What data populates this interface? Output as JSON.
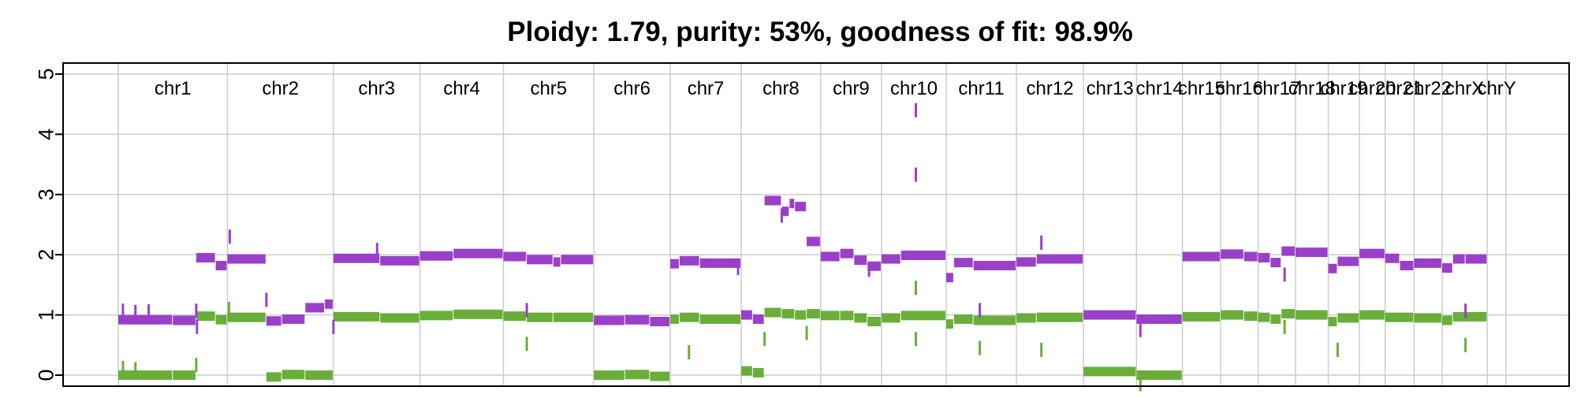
{
  "chart_data": {
    "type": "scatter",
    "title": "Ploidy: 1.79, purity: 53%, goodness of fit: 98.9%",
    "xlabel": "",
    "ylabel": "",
    "ylim": [
      -0.15,
      5.1
    ],
    "yticks": [
      0,
      1,
      2,
      3,
      4,
      5
    ],
    "grid": true,
    "legend": "none",
    "colors": {
      "major": "#9a40c8",
      "minor": "#6aae3a",
      "grid": "#cccccc",
      "axis": "#000000"
    },
    "chromosomes": [
      {
        "name": "chr1",
        "span": [
          0,
          140
        ]
      },
      {
        "name": "chr2",
        "span": [
          140,
          276
        ]
      },
      {
        "name": "chr3",
        "span": [
          276,
          387
        ]
      },
      {
        "name": "chr4",
        "span": [
          387,
          494
        ]
      },
      {
        "name": "chr5",
        "span": [
          494,
          610
        ]
      },
      {
        "name": "chr6",
        "span": [
          610,
          708
        ]
      },
      {
        "name": "chr7",
        "span": [
          708,
          799
        ]
      },
      {
        "name": "chr8",
        "span": [
          799,
          901
        ]
      },
      {
        "name": "chr9",
        "span": [
          901,
          979
        ]
      },
      {
        "name": "chr10",
        "span": [
          979,
          1062
        ]
      },
      {
        "name": "chr11",
        "span": [
          1062,
          1152
        ]
      },
      {
        "name": "chr12",
        "span": [
          1152,
          1238
        ]
      },
      {
        "name": "chr13",
        "span": [
          1238,
          1306
        ]
      },
      {
        "name": "chr14",
        "span": [
          1306,
          1365
        ]
      },
      {
        "name": "chr15",
        "span": [
          1365,
          1414
        ]
      },
      {
        "name": "chr16",
        "span": [
          1414,
          1462
        ]
      },
      {
        "name": "chr17",
        "span": [
          1462,
          1510
        ]
      },
      {
        "name": "chr18",
        "span": [
          1510,
          1552
        ]
      },
      {
        "name": "chr19",
        "span": [
          1552,
          1592
        ]
      },
      {
        "name": "chr20",
        "span": [
          1592,
          1625
        ]
      },
      {
        "name": "chr21",
        "span": [
          1625,
          1662
        ]
      },
      {
        "name": "chr22",
        "span": [
          1662,
          1698
        ]
      },
      {
        "name": "chrX",
        "span": [
          1698,
          1756
        ]
      },
      {
        "name": "chrY",
        "span": [
          1756,
          1780
        ]
      }
    ],
    "series": [
      {
        "name": "major",
        "segments": [
          {
            "x": [
              0,
              70
            ],
            "y": 0.92
          },
          {
            "x": [
              70,
              100
            ],
            "y": 0.91
          },
          {
            "x": [
              100,
              125
            ],
            "y": 1.95
          },
          {
            "x": [
              125,
              140
            ],
            "y": 1.82
          },
          {
            "x": [
              140,
              190
            ],
            "y": 1.93
          },
          {
            "x": [
              190,
              210
            ],
            "y": 0.9
          },
          {
            "x": [
              210,
              240
            ],
            "y": 0.93
          },
          {
            "x": [
              240,
              265
            ],
            "y": 1.12
          },
          {
            "x": [
              265,
              276
            ],
            "y": 1.18
          },
          {
            "x": [
              276,
              336
            ],
            "y": 1.94
          },
          {
            "x": [
              336,
              387
            ],
            "y": 1.9
          },
          {
            "x": [
              387,
              430
            ],
            "y": 1.98
          },
          {
            "x": [
              430,
              494
            ],
            "y": 2.02
          },
          {
            "x": [
              494,
              524
            ],
            "y": 1.97
          },
          {
            "x": [
              524,
              558
            ],
            "y": 1.92
          },
          {
            "x": [
              558,
              568
            ],
            "y": 1.88
          },
          {
            "x": [
              568,
              610
            ],
            "y": 1.92
          },
          {
            "x": [
              610,
              650
            ],
            "y": 0.91
          },
          {
            "x": [
              650,
              682
            ],
            "y": 0.92
          },
          {
            "x": [
              682,
              708
            ],
            "y": 0.89
          },
          {
            "x": [
              708,
              720
            ],
            "y": 1.85
          },
          {
            "x": [
              720,
              746
            ],
            "y": 1.9
          },
          {
            "x": [
              746,
              799
            ],
            "y": 1.86
          },
          {
            "x": [
              799,
              814
            ],
            "y": 1.0
          },
          {
            "x": [
              814,
              829
            ],
            "y": 0.93
          },
          {
            "x": [
              829,
              851
            ],
            "y": 2.9
          },
          {
            "x": [
              851,
              861
            ],
            "y": 2.72
          },
          {
            "x": [
              861,
              868
            ],
            "y": 2.85
          },
          {
            "x": [
              868,
              883
            ],
            "y": 2.8
          },
          {
            "x": [
              883,
              901
            ],
            "y": 2.22
          },
          {
            "x": [
              901,
              926
            ],
            "y": 1.97
          },
          {
            "x": [
              926,
              944
            ],
            "y": 2.02
          },
          {
            "x": [
              944,
              961
            ],
            "y": 1.91
          },
          {
            "x": [
              961,
              979
            ],
            "y": 1.81
          },
          {
            "x": [
              979,
              1004
            ],
            "y": 1.93
          },
          {
            "x": [
              1004,
              1062
            ],
            "y": 1.99
          },
          {
            "x": [
              1062,
              1072
            ],
            "y": 1.62
          },
          {
            "x": [
              1072,
              1097
            ],
            "y": 1.87
          },
          {
            "x": [
              1097,
              1152
            ],
            "y": 1.82
          },
          {
            "x": [
              1152,
              1178
            ],
            "y": 1.88
          },
          {
            "x": [
              1178,
              1238
            ],
            "y": 1.93
          },
          {
            "x": [
              1238,
              1306
            ],
            "y": 1.0
          },
          {
            "x": [
              1306,
              1365
            ],
            "y": 0.93
          },
          {
            "x": [
              1365,
              1414
            ],
            "y": 1.97
          },
          {
            "x": [
              1414,
              1444
            ],
            "y": 2.01
          },
          {
            "x": [
              1444,
              1462
            ],
            "y": 1.97
          },
          {
            "x": [
              1462,
              1478
            ],
            "y": 1.95
          },
          {
            "x": [
              1478,
              1492
            ],
            "y": 1.87
          },
          {
            "x": [
              1492,
              1510
            ],
            "y": 2.06
          },
          {
            "x": [
              1510,
              1552
            ],
            "y": 2.04
          },
          {
            "x": [
              1552,
              1564
            ],
            "y": 1.77
          },
          {
            "x": [
              1564,
              1592
            ],
            "y": 1.89
          },
          {
            "x": [
              1592,
              1625
            ],
            "y": 2.02
          },
          {
            "x": [
              1625,
              1644
            ],
            "y": 1.94
          },
          {
            "x": [
              1644,
              1662
            ],
            "y": 1.82
          },
          {
            "x": [
              1662,
              1698
            ],
            "y": 1.86
          },
          {
            "x": [
              1698,
              1712
            ],
            "y": 1.78
          },
          {
            "x": [
              1712,
              1728
            ],
            "y": 1.93
          },
          {
            "x": [
              1728,
              1756
            ],
            "y": 1.93
          }
        ],
        "outliers": [
          {
            "x": 6,
            "y": 1.07
          },
          {
            "x": 22,
            "y": 1.05
          },
          {
            "x": 39,
            "y": 1.06
          },
          {
            "x": 100,
            "y": 1.07
          },
          {
            "x": 101,
            "y": 0.8
          },
          {
            "x": 143,
            "y": 2.3
          },
          {
            "x": 190,
            "y": 1.25
          },
          {
            "x": 276,
            "y": 0.8
          },
          {
            "x": 332,
            "y": 2.08
          },
          {
            "x": 524,
            "y": 1.08
          },
          {
            "x": 795,
            "y": 1.78
          },
          {
            "x": 851,
            "y": 2.65
          },
          {
            "x": 963,
            "y": 1.75
          },
          {
            "x": 1023,
            "y": 4.4
          },
          {
            "x": 1023,
            "y": 3.33
          },
          {
            "x": 1105,
            "y": 1.08
          },
          {
            "x": 1184,
            "y": 2.2
          },
          {
            "x": 1311,
            "y": 0.75
          },
          {
            "x": 1496,
            "y": 1.67
          },
          {
            "x": 1728,
            "y": 1.07
          }
        ]
      },
      {
        "name": "minor",
        "segments": [
          {
            "x": [
              0,
              70
            ],
            "y": 0.0
          },
          {
            "x": [
              70,
              100
            ],
            "y": 0.0
          },
          {
            "x": [
              100,
              125
            ],
            "y": 0.98
          },
          {
            "x": [
              125,
              140
            ],
            "y": 0.92
          },
          {
            "x": [
              140,
              190
            ],
            "y": 0.96
          },
          {
            "x": [
              190,
              210
            ],
            "y": -0.03
          },
          {
            "x": [
              210,
              240
            ],
            "y": 0.01
          },
          {
            "x": [
              240,
              276
            ],
            "y": 0.0
          },
          {
            "x": [
              276,
              336
            ],
            "y": 0.97
          },
          {
            "x": [
              336,
              387
            ],
            "y": 0.95
          },
          {
            "x": [
              387,
              430
            ],
            "y": 0.99
          },
          {
            "x": [
              430,
              494
            ],
            "y": 1.01
          },
          {
            "x": [
              494,
              524
            ],
            "y": 0.98
          },
          {
            "x": [
              524,
              558
            ],
            "y": 0.96
          },
          {
            "x": [
              558,
              610
            ],
            "y": 0.96
          },
          {
            "x": [
              610,
              650
            ],
            "y": 0.0
          },
          {
            "x": [
              650,
              682
            ],
            "y": 0.01
          },
          {
            "x": [
              682,
              708
            ],
            "y": -0.02
          },
          {
            "x": [
              708,
              720
            ],
            "y": 0.93
          },
          {
            "x": [
              720,
              746
            ],
            "y": 0.96
          },
          {
            "x": [
              746,
              799
            ],
            "y": 0.93
          },
          {
            "x": [
              799,
              814
            ],
            "y": 0.07
          },
          {
            "x": [
              814,
              829
            ],
            "y": 0.04
          },
          {
            "x": [
              829,
              851
            ],
            "y": 1.04
          },
          {
            "x": [
              851,
              868
            ],
            "y": 1.02
          },
          {
            "x": [
              868,
              883
            ],
            "y": 1.0
          },
          {
            "x": [
              883,
              901
            ],
            "y": 1.02
          },
          {
            "x": [
              901,
              926
            ],
            "y": 0.99
          },
          {
            "x": [
              926,
              944
            ],
            "y": 0.99
          },
          {
            "x": [
              944,
              961
            ],
            "y": 0.95
          },
          {
            "x": [
              961,
              979
            ],
            "y": 0.89
          },
          {
            "x": [
              979,
              1004
            ],
            "y": 0.95
          },
          {
            "x": [
              1004,
              1062
            ],
            "y": 0.99
          },
          {
            "x": [
              1062,
              1072
            ],
            "y": 0.85
          },
          {
            "x": [
              1072,
              1097
            ],
            "y": 0.93
          },
          {
            "x": [
              1097,
              1152
            ],
            "y": 0.91
          },
          {
            "x": [
              1152,
              1178
            ],
            "y": 0.95
          },
          {
            "x": [
              1178,
              1238
            ],
            "y": 0.96
          },
          {
            "x": [
              1238,
              1306
            ],
            "y": 0.06
          },
          {
            "x": [
              1306,
              1365
            ],
            "y": 0.0
          },
          {
            "x": [
              1365,
              1414
            ],
            "y": 0.97
          },
          {
            "x": [
              1414,
              1444
            ],
            "y": 1.0
          },
          {
            "x": [
              1444,
              1462
            ],
            "y": 0.98
          },
          {
            "x": [
              1462,
              1478
            ],
            "y": 0.96
          },
          {
            "x": [
              1478,
              1492
            ],
            "y": 0.93
          },
          {
            "x": [
              1492,
              1510
            ],
            "y": 1.02
          },
          {
            "x": [
              1510,
              1552
            ],
            "y": 1.0
          },
          {
            "x": [
              1552,
              1564
            ],
            "y": 0.89
          },
          {
            "x": [
              1564,
              1592
            ],
            "y": 0.95
          },
          {
            "x": [
              1592,
              1625
            ],
            "y": 1.0
          },
          {
            "x": [
              1625,
              1662
            ],
            "y": 0.96
          },
          {
            "x": [
              1662,
              1698
            ],
            "y": 0.95
          },
          {
            "x": [
              1698,
              1712
            ],
            "y": 0.91
          },
          {
            "x": [
              1712,
              1756
            ],
            "y": 0.97
          }
        ],
        "outliers": [
          {
            "x": 6,
            "y": 0.12
          },
          {
            "x": 22,
            "y": 0.1
          },
          {
            "x": 100,
            "y": 0.17
          },
          {
            "x": 142,
            "y": 1.1
          },
          {
            "x": 524,
            "y": 0.52
          },
          {
            "x": 732,
            "y": 0.38
          },
          {
            "x": 829,
            "y": 0.6
          },
          {
            "x": 883,
            "y": 0.7
          },
          {
            "x": 1023,
            "y": 1.45
          },
          {
            "x": 1023,
            "y": 0.6
          },
          {
            "x": 1105,
            "y": 0.45
          },
          {
            "x": 1184,
            "y": 0.42
          },
          {
            "x": 1311,
            "y": -0.15
          },
          {
            "x": 1496,
            "y": 0.8
          },
          {
            "x": 1564,
            "y": 0.42
          },
          {
            "x": 1728,
            "y": 0.5
          }
        ]
      }
    ]
  }
}
